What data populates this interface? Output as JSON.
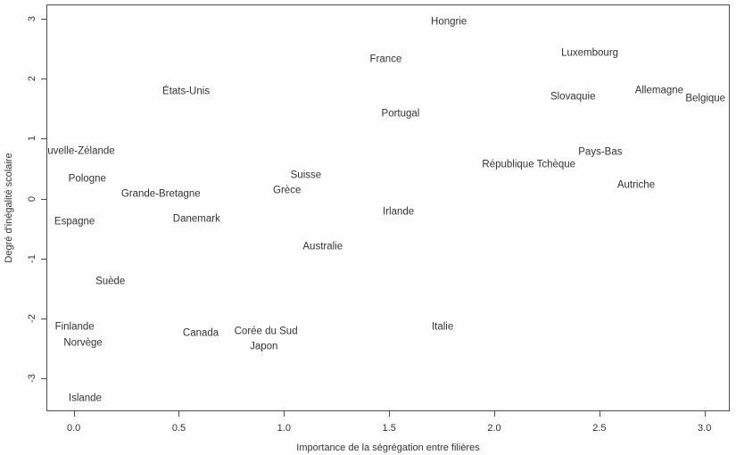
{
  "colors": {
    "background": "#fefefe",
    "text": "#333333",
    "axis": "#4d4d4d"
  },
  "chart_data": {
    "type": "scatter",
    "title": "",
    "xlabel": "Importance de la ségrégation entre filières",
    "ylabel": "Degré d'inégalité scolaire",
    "xlim": [
      -0.13,
      3.12
    ],
    "ylim": [
      -3.55,
      3.24
    ],
    "grid": false,
    "legend": "none",
    "marker": "text-label",
    "x_ticks": [
      {
        "value": 0.0,
        "label": "0.0"
      },
      {
        "value": 0.5,
        "label": "0.5"
      },
      {
        "value": 1.0,
        "label": "1.0"
      },
      {
        "value": 1.5,
        "label": "1.5"
      },
      {
        "value": 2.0,
        "label": "2.0"
      },
      {
        "value": 2.5,
        "label": "2.5"
      },
      {
        "value": 3.0,
        "label": "3.0"
      }
    ],
    "y_ticks": [
      {
        "value": 3,
        "label": "3"
      },
      {
        "value": 2,
        "label": "2"
      },
      {
        "value": 1,
        "label": "1"
      },
      {
        "value": 0,
        "label": "0"
      },
      {
        "value": -1,
        "label": "-1"
      },
      {
        "value": -2,
        "label": "-2"
      },
      {
        "value": -3,
        "label": "-3"
      }
    ],
    "points": [
      {
        "label": "Hongrie",
        "x": 1.78,
        "y": 2.96
      },
      {
        "label": "France",
        "x": 1.48,
        "y": 2.33
      },
      {
        "label": "Luxembourg",
        "x": 2.45,
        "y": 2.44
      },
      {
        "label": "États-Unis",
        "x": 0.53,
        "y": 1.79
      },
      {
        "label": "Slovaquie",
        "x": 2.37,
        "y": 1.7
      },
      {
        "label": "Allemagne",
        "x": 2.78,
        "y": 1.81
      },
      {
        "label": "Belgique",
        "x": 3.0,
        "y": 1.67
      },
      {
        "label": "Portugal",
        "x": 1.55,
        "y": 1.42
      },
      {
        "label": "Nouvelle-Zélande",
        "x": 0.0,
        "y": 0.8
      },
      {
        "label": "Pays-Bas",
        "x": 2.5,
        "y": 0.78
      },
      {
        "label": "République Tchèque",
        "x": 2.16,
        "y": 0.57
      },
      {
        "label": "Pologne",
        "x": 0.06,
        "y": 0.34
      },
      {
        "label": "Suisse",
        "x": 1.1,
        "y": 0.39
      },
      {
        "label": "Grèce",
        "x": 1.01,
        "y": 0.14
      },
      {
        "label": "Grande-Bretagne",
        "x": 0.41,
        "y": 0.08
      },
      {
        "label": "Autriche",
        "x": 2.67,
        "y": 0.23
      },
      {
        "label": "Irlande",
        "x": 1.54,
        "y": -0.22
      },
      {
        "label": "Danemark",
        "x": 0.58,
        "y": -0.33
      },
      {
        "label": "Espagne",
        "x": 0.0,
        "y": -0.38
      },
      {
        "label": "Australie",
        "x": 1.18,
        "y": -0.8
      },
      {
        "label": "Suède",
        "x": 0.17,
        "y": -1.38
      },
      {
        "label": "Finlande",
        "x": 0.0,
        "y": -2.14
      },
      {
        "label": "Canada",
        "x": 0.6,
        "y": -2.24
      },
      {
        "label": "Corée du Sud",
        "x": 0.91,
        "y": -2.21
      },
      {
        "label": "Norvège",
        "x": 0.04,
        "y": -2.4
      },
      {
        "label": "Japon",
        "x": 0.9,
        "y": -2.46
      },
      {
        "label": "Italie",
        "x": 1.75,
        "y": -2.14
      },
      {
        "label": "Islande",
        "x": 0.05,
        "y": -3.33
      }
    ]
  }
}
